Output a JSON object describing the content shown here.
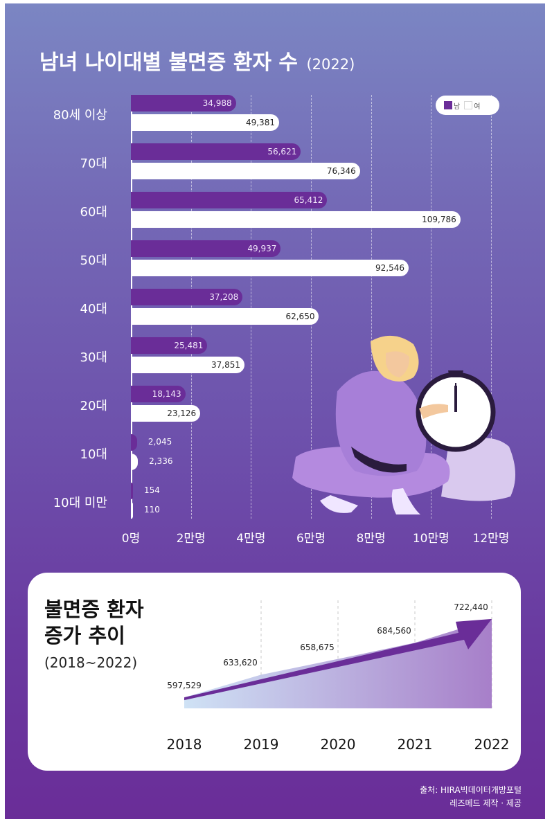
{
  "title": "남녀 나이대별 불면증 환자 수",
  "title_year": "(2022)",
  "legend": {
    "male": "남",
    "female": "여"
  },
  "colors": {
    "male": "#6a2d98",
    "female": "#ffffff",
    "background_top": "#7b86c3",
    "background_bottom": "#6a2d98"
  },
  "illustration": "woman-with-alarm-clock",
  "chart_data": [
    {
      "type": "bar",
      "orientation": "horizontal",
      "title": "남녀 나이대별 불면증 환자 수 (2022)",
      "categories": [
        "80세 이상",
        "70대",
        "60대",
        "50대",
        "40대",
        "30대",
        "20대",
        "10대",
        "10대 미만"
      ],
      "series": [
        {
          "name": "남",
          "values": [
            34988,
            56621,
            65412,
            49937,
            37208,
            25481,
            18143,
            2045,
            154
          ],
          "labels": [
            "34,988",
            "56,621",
            "65,412",
            "49,937",
            "37,208",
            "25,481",
            "18,143",
            "2,045",
            "154"
          ]
        },
        {
          "name": "여",
          "values": [
            49381,
            76346,
            109786,
            92546,
            62650,
            37851,
            23126,
            2336,
            110
          ],
          "labels": [
            "49,381",
            "76,346",
            "109,786",
            "92,546",
            "62,650",
            "37,851",
            "23,126",
            "2,336",
            "110"
          ]
        }
      ],
      "xlim": [
        0,
        120000
      ],
      "xticks": [
        0,
        20000,
        40000,
        60000,
        80000,
        100000,
        120000
      ],
      "xtick_labels": [
        "0명",
        "2만명",
        "4만명",
        "6만명",
        "8만명",
        "10만명",
        "12만명"
      ],
      "grid": true,
      "legend_position": "top-right"
    },
    {
      "type": "area",
      "title": "불면증 환자 증가 추이",
      "title_lines": [
        "불면증 환자",
        "증가 추이"
      ],
      "subtitle": "(2018~2022)",
      "x": [
        "2018",
        "2019",
        "2020",
        "2021",
        "2022"
      ],
      "values": [
        597529,
        633620,
        658675,
        684560,
        722440
      ],
      "labels": [
        "597,529",
        "633,620",
        "658,675",
        "684,560",
        "722,440"
      ],
      "ylim": [
        580000,
        730000
      ],
      "grid": true
    }
  ],
  "source": {
    "line1": "출처: HIRA빅데이터개방포털",
    "line2": "레즈메드 제작 · 제공"
  }
}
